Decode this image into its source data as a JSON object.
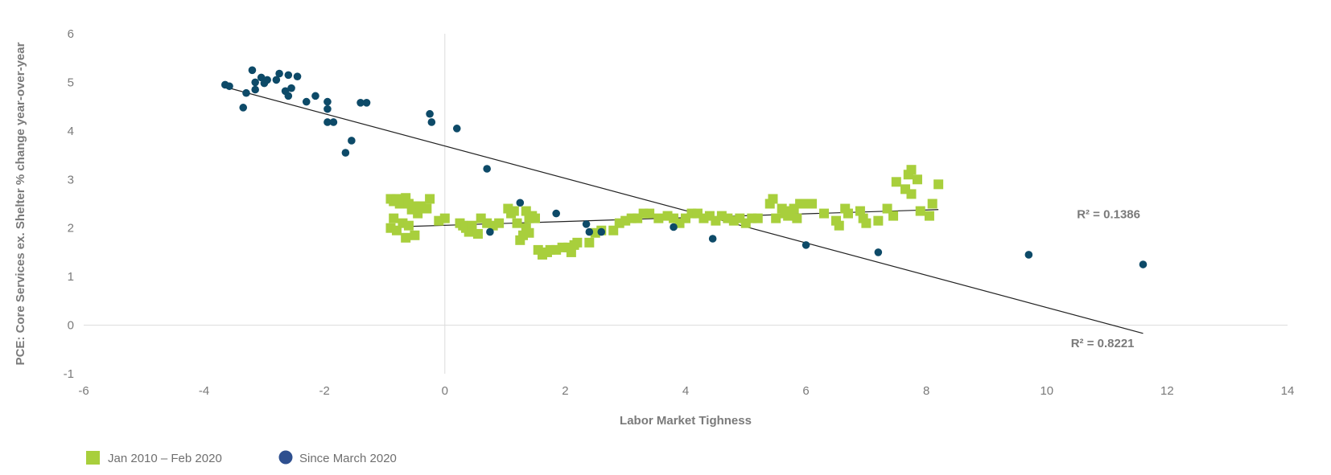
{
  "chart_data": {
    "type": "scatter",
    "xlabel": "Labor Market Tighness",
    "ylabel": "PCE: Core Services ex. Shelter % change year-over-year",
    "xlim": [
      -6,
      14
    ],
    "ylim": [
      -1,
      6
    ],
    "xticks": [
      -6,
      -4,
      -2,
      0,
      2,
      4,
      6,
      8,
      10,
      12,
      14
    ],
    "yticks": [
      -1,
      0,
      1,
      2,
      3,
      4,
      5,
      6
    ],
    "grid": false,
    "legend_position": "bottom-left",
    "series": [
      {
        "name": "Jan 2010 – Feb 2020",
        "color": "#a8cf3c",
        "marker": "square",
        "points": [
          [
            -0.9,
            2.6
          ],
          [
            -0.85,
            2.55
          ],
          [
            -0.8,
            2.6
          ],
          [
            -0.75,
            2.5
          ],
          [
            -0.65,
            2.62
          ],
          [
            -0.6,
            2.5
          ],
          [
            -0.55,
            2.38
          ],
          [
            -0.5,
            2.45
          ],
          [
            -0.45,
            2.3
          ],
          [
            -0.4,
            2.45
          ],
          [
            -0.9,
            2.0
          ],
          [
            -0.85,
            2.2
          ],
          [
            -0.8,
            1.95
          ],
          [
            -0.7,
            2.1
          ],
          [
            -0.6,
            2.05
          ],
          [
            -0.65,
            1.8
          ],
          [
            -0.5,
            1.85
          ],
          [
            -0.3,
            2.4
          ],
          [
            -0.25,
            2.6
          ],
          [
            -0.1,
            2.15
          ],
          [
            0.0,
            2.2
          ],
          [
            0.25,
            2.1
          ],
          [
            0.3,
            2.05
          ],
          [
            0.35,
            2.0
          ],
          [
            0.4,
            1.92
          ],
          [
            0.45,
            2.05
          ],
          [
            0.55,
            1.88
          ],
          [
            0.6,
            2.2
          ],
          [
            0.7,
            2.1
          ],
          [
            0.8,
            2.05
          ],
          [
            0.9,
            2.1
          ],
          [
            1.05,
            2.4
          ],
          [
            1.1,
            2.3
          ],
          [
            1.15,
            2.35
          ],
          [
            1.2,
            2.1
          ],
          [
            1.25,
            1.75
          ],
          [
            1.3,
            1.85
          ],
          [
            1.35,
            2.35
          ],
          [
            1.4,
            2.2
          ],
          [
            1.45,
            2.25
          ],
          [
            1.35,
            2.0
          ],
          [
            1.4,
            1.9
          ],
          [
            1.5,
            2.2
          ],
          [
            1.55,
            1.55
          ],
          [
            1.62,
            1.45
          ],
          [
            1.7,
            1.5
          ],
          [
            1.75,
            1.55
          ],
          [
            1.85,
            1.55
          ],
          [
            1.95,
            1.6
          ],
          [
            2.05,
            1.6
          ],
          [
            2.1,
            1.5
          ],
          [
            2.15,
            1.65
          ],
          [
            2.2,
            1.7
          ],
          [
            2.4,
            1.7
          ],
          [
            2.5,
            1.9
          ],
          [
            2.6,
            1.95
          ],
          [
            2.8,
            1.95
          ],
          [
            2.9,
            2.1
          ],
          [
            3.0,
            2.15
          ],
          [
            3.1,
            2.2
          ],
          [
            3.2,
            2.2
          ],
          [
            3.3,
            2.3
          ],
          [
            3.4,
            2.3
          ],
          [
            3.55,
            2.2
          ],
          [
            3.7,
            2.25
          ],
          [
            3.8,
            2.2
          ],
          [
            3.9,
            2.1
          ],
          [
            4.0,
            2.2
          ],
          [
            4.1,
            2.3
          ],
          [
            4.2,
            2.3
          ],
          [
            4.3,
            2.2
          ],
          [
            4.4,
            2.25
          ],
          [
            4.5,
            2.15
          ],
          [
            4.6,
            2.25
          ],
          [
            4.7,
            2.2
          ],
          [
            4.8,
            2.15
          ],
          [
            4.9,
            2.2
          ],
          [
            5.0,
            2.1
          ],
          [
            5.1,
            2.2
          ],
          [
            5.2,
            2.2
          ],
          [
            5.4,
            2.5
          ],
          [
            5.45,
            2.6
          ],
          [
            5.5,
            2.2
          ],
          [
            5.6,
            2.4
          ],
          [
            5.65,
            2.3
          ],
          [
            5.7,
            2.25
          ],
          [
            5.75,
            2.35
          ],
          [
            5.8,
            2.4
          ],
          [
            5.85,
            2.2
          ],
          [
            5.9,
            2.5
          ],
          [
            6.0,
            2.5
          ],
          [
            6.1,
            2.5
          ],
          [
            6.3,
            2.3
          ],
          [
            6.5,
            2.15
          ],
          [
            6.55,
            2.05
          ],
          [
            6.65,
            2.4
          ],
          [
            6.7,
            2.3
          ],
          [
            6.9,
            2.35
          ],
          [
            6.95,
            2.2
          ],
          [
            7.0,
            2.1
          ],
          [
            7.2,
            2.15
          ],
          [
            7.35,
            2.4
          ],
          [
            7.45,
            2.25
          ],
          [
            7.5,
            2.95
          ],
          [
            7.65,
            2.8
          ],
          [
            7.7,
            3.1
          ],
          [
            7.75,
            3.2
          ],
          [
            7.75,
            2.7
          ],
          [
            7.85,
            3.0
          ],
          [
            7.9,
            2.35
          ],
          [
            8.05,
            2.25
          ],
          [
            8.1,
            2.5
          ],
          [
            8.2,
            2.9
          ]
        ]
      },
      {
        "name": "Since March 2020",
        "color": "#0d4a68",
        "marker": "circle",
        "points": [
          [
            -3.65,
            4.95
          ],
          [
            -3.58,
            4.92
          ],
          [
            -3.35,
            4.48
          ],
          [
            -3.3,
            4.78
          ],
          [
            -3.2,
            5.25
          ],
          [
            -3.15,
            5.0
          ],
          [
            -3.15,
            4.85
          ],
          [
            -3.05,
            5.1
          ],
          [
            -3.0,
            4.98
          ],
          [
            -2.95,
            5.05
          ],
          [
            -2.8,
            5.05
          ],
          [
            -2.75,
            5.18
          ],
          [
            -2.65,
            4.82
          ],
          [
            -2.6,
            5.15
          ],
          [
            -2.6,
            4.72
          ],
          [
            -2.55,
            4.88
          ],
          [
            -2.45,
            5.12
          ],
          [
            -2.3,
            4.6
          ],
          [
            -2.15,
            4.72
          ],
          [
            -1.95,
            4.6
          ],
          [
            -1.95,
            4.45
          ],
          [
            -1.95,
            4.18
          ],
          [
            -1.85,
            4.18
          ],
          [
            -1.65,
            3.55
          ],
          [
            -1.55,
            3.8
          ],
          [
            -1.4,
            4.58
          ],
          [
            -1.3,
            4.58
          ],
          [
            -0.25,
            4.35
          ],
          [
            -0.22,
            4.18
          ],
          [
            0.2,
            4.05
          ],
          [
            0.7,
            3.22
          ],
          [
            0.75,
            1.92
          ],
          [
            1.25,
            2.52
          ],
          [
            1.85,
            2.3
          ],
          [
            2.35,
            2.08
          ],
          [
            2.4,
            1.92
          ],
          [
            2.6,
            1.92
          ],
          [
            3.8,
            2.02
          ],
          [
            4.45,
            1.78
          ],
          [
            6.0,
            1.65
          ],
          [
            7.2,
            1.5
          ],
          [
            9.7,
            1.45
          ],
          [
            11.6,
            1.25
          ]
        ]
      }
    ],
    "trendlines": [
      {
        "series": "Jan 2010 – Feb 2020",
        "x": [
          -0.9,
          8.2
        ],
        "y": [
          2.02,
          2.38
        ],
        "label": "R² = 0.1386"
      },
      {
        "series": "Since March 2020",
        "x": [
          -3.7,
          11.6
        ],
        "y": [
          4.92,
          -0.17
        ],
        "label": "R² = 0.8221"
      }
    ]
  }
}
